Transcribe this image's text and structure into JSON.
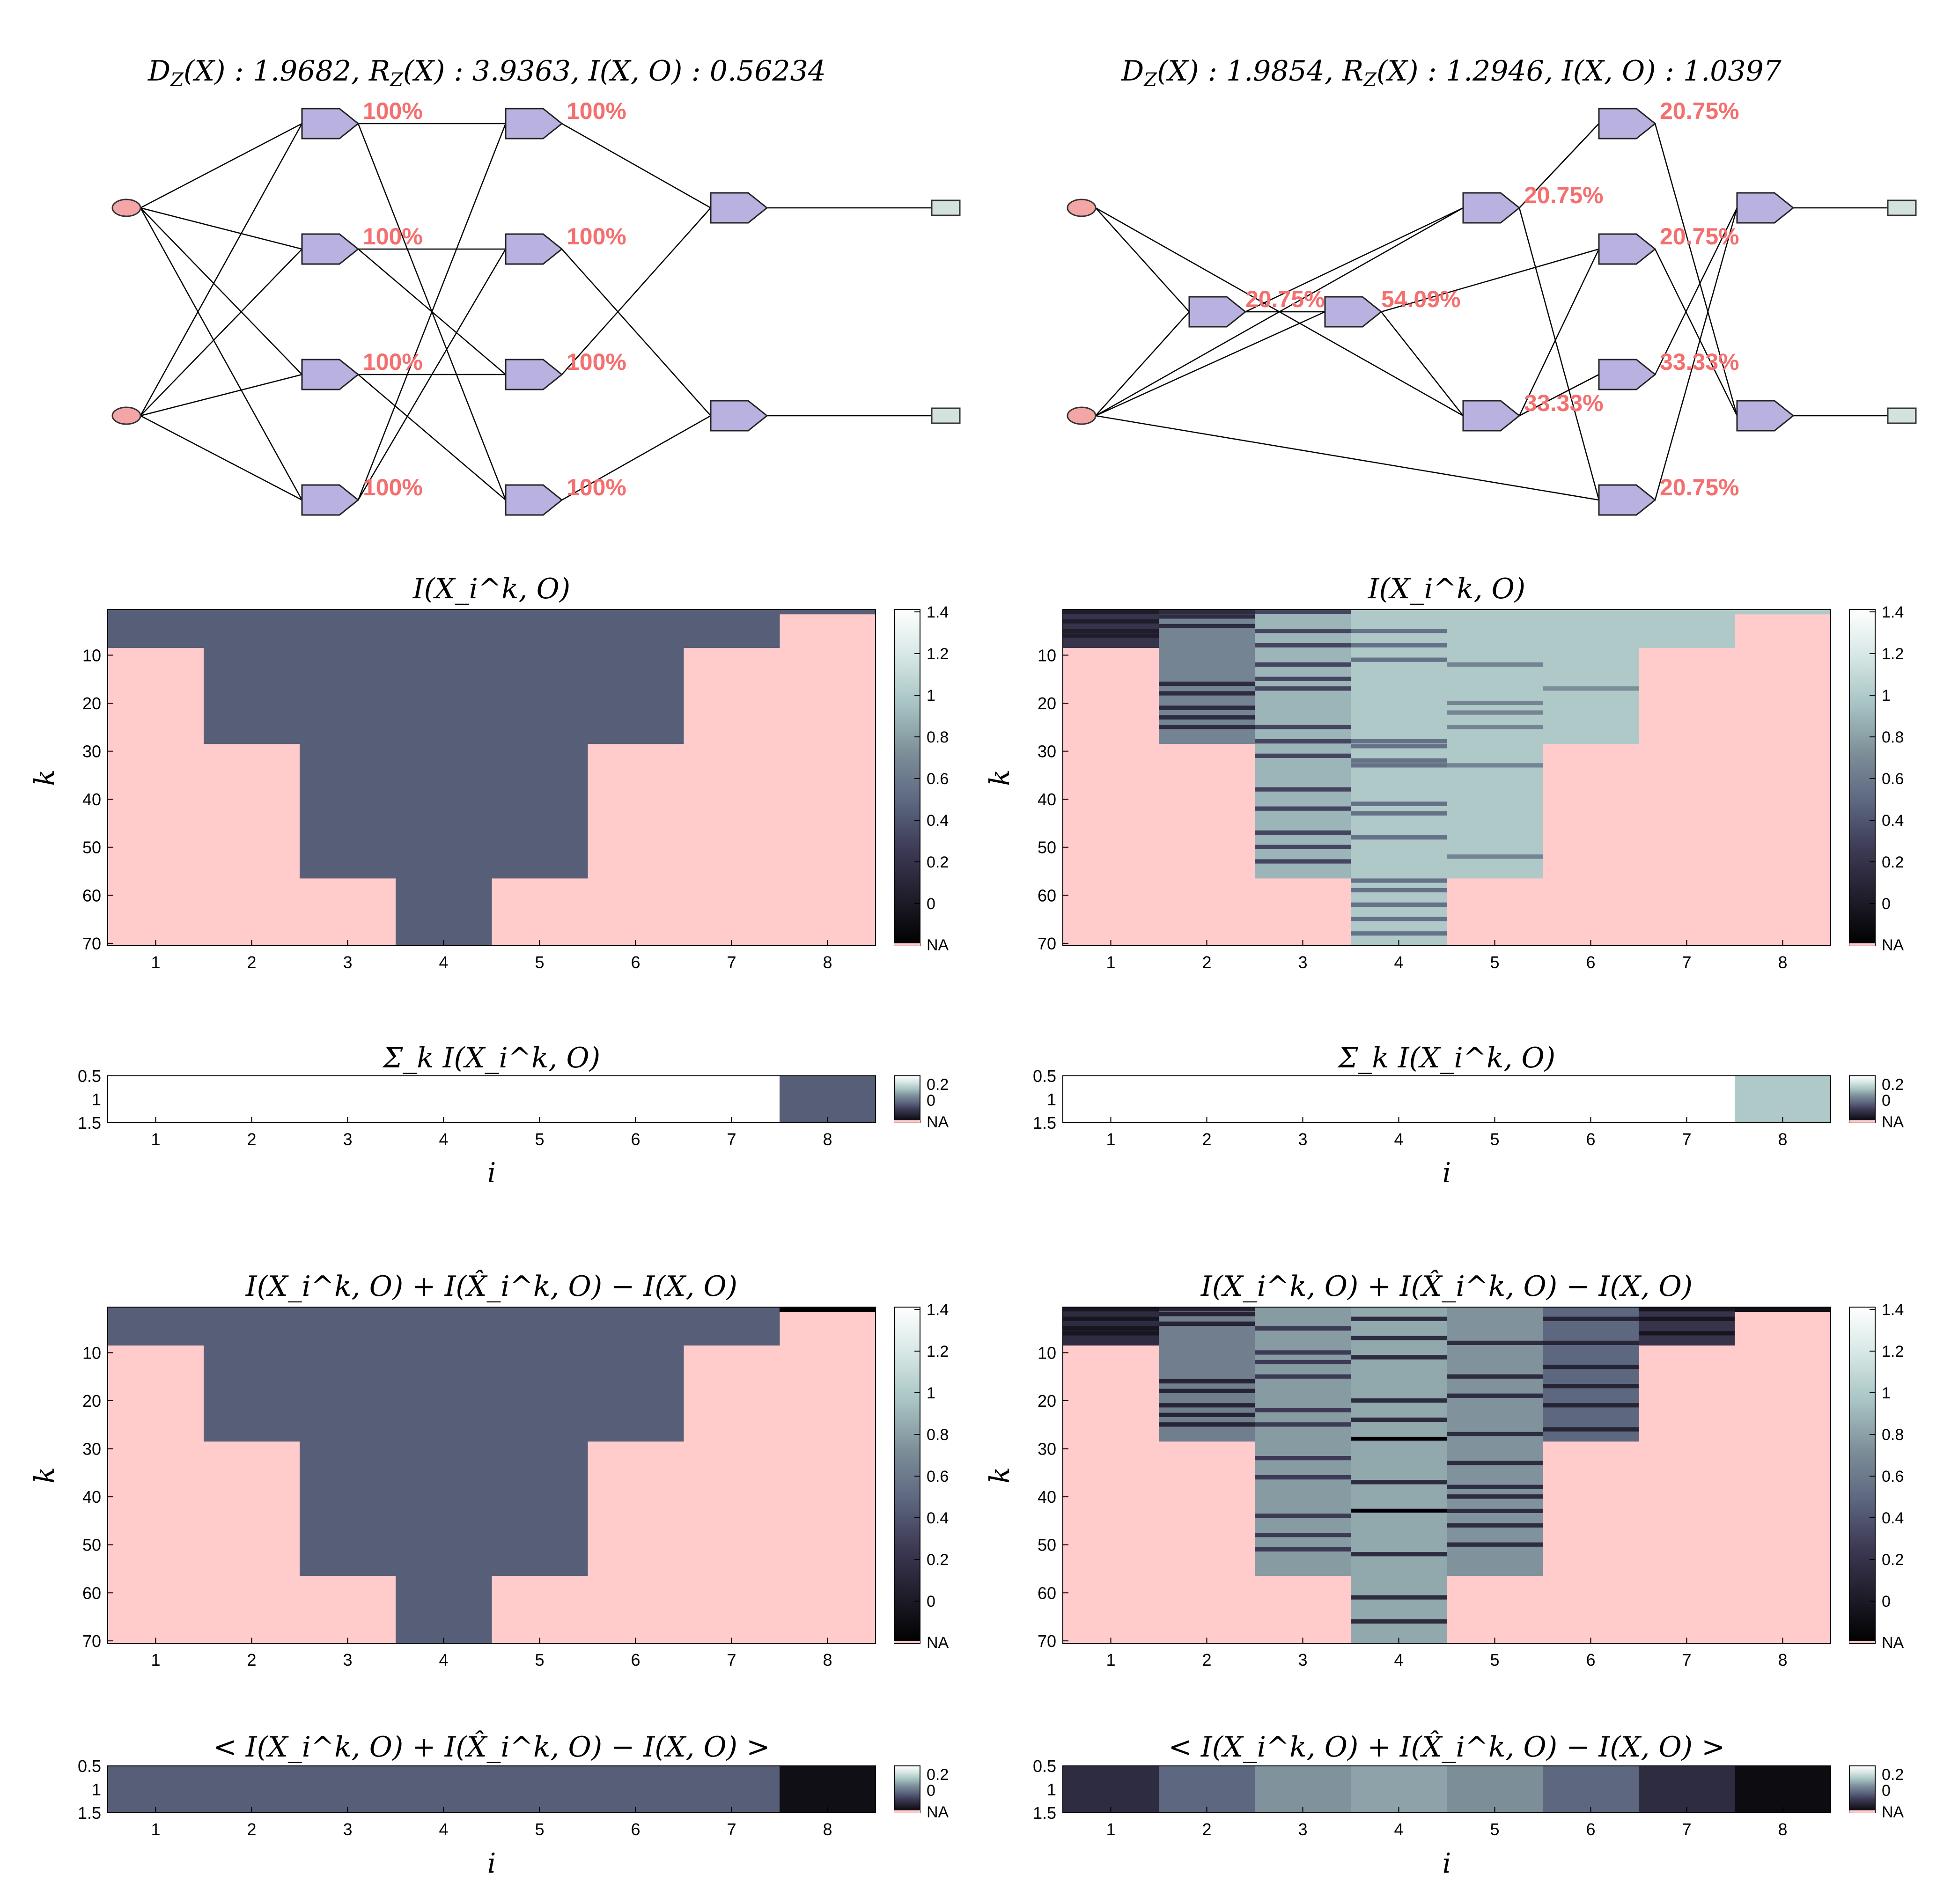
{
  "colors": {
    "na": "#ffcbcb",
    "cmap_stops": [
      "#000000",
      "#1f1d2b",
      "#3d3a55",
      "#5d6780",
      "#7c8e98",
      "#a6c2c2",
      "#d4e6e4",
      "#ffffff"
    ],
    "node_input": "#f4a6a6",
    "node_hidden": "#b9b1e0",
    "node_output": "#d4e2de",
    "percent": "#f46f6f"
  },
  "colorbar": {
    "ticks": [
      "0",
      "0.2",
      "0.4",
      "0.6",
      "0.8",
      "1",
      "1.2",
      "1.4"
    ],
    "small_ticks": [
      "0.2",
      "0",
      "NA"
    ],
    "na_label": "NA"
  },
  "networks": [
    {
      "title": "D_Z(X) : 1.9682, R_Z(X) : 3.9363, I(X,O) : 0.56234",
      "title_parts": [
        "D",
        "Z",
        "(X) : 1.9682, R",
        "Z",
        "(X) : 3.9363, I(X, O) : 0.56234"
      ],
      "node_labels": {
        "h1a": "100%",
        "h1b": "100%",
        "h1c": "100%",
        "h1d": "100%",
        "h2a": "100%",
        "h2b": "100%",
        "h2c": "100%",
        "h2d": "100%"
      }
    },
    {
      "title": "D_Z(X) : 1.9854, R_Z(X) : 1.2946, I(X,O) : 1.0397",
      "title_parts": [
        "D",
        "Z",
        "(X) : 1.9854, R",
        "Z",
        "(X) : 1.2946, I(X, O) : 1.0397"
      ],
      "node_labels": {
        "m1": "20.75%",
        "m2": "54.09%",
        "n1": "20.75%",
        "n2": "33.33%",
        "p1": "20.75%",
        "p2": "20.75%",
        "p3": "33.33%",
        "p4": "20.75%"
      }
    }
  ],
  "charts": {
    "heat_title_1": "I(X_i^k, O)",
    "sum_title": "Σ_k I(X_i^k, O)",
    "heat_title_2": "I(X_i^k, O) + I(X̂_i^k, O) − I(X, O)",
    "avg_title": "< I(X_i^k, O) + I(X̂_i^k, O) − I(X, O) >",
    "xlabel": "i",
    "ylabel": "k",
    "x_ticks": [
      "1",
      "2",
      "3",
      "4",
      "5",
      "6",
      "7",
      "8"
    ],
    "y_ticks": [
      "10",
      "20",
      "30",
      "40",
      "50",
      "60",
      "70"
    ],
    "strip_y_ticks": [
      "0.5",
      "1",
      "1.5"
    ]
  },
  "chart_data": [
    {
      "type": "heatmap",
      "panel": "left-1",
      "title": "I(X_i^k, O)",
      "xlabel": "",
      "ylabel": "k",
      "x": [
        1,
        2,
        3,
        4,
        5,
        6,
        7,
        8
      ],
      "k_range": [
        1,
        70
      ],
      "column_k_max": [
        8,
        28,
        56,
        70,
        56,
        28,
        8,
        1
      ],
      "column_values": [
        0.56,
        0.56,
        0.56,
        0.56,
        0.56,
        0.56,
        0.56,
        0.56
      ],
      "na_color_note": "cells beyond k max are NA",
      "clim": [
        0,
        1.4
      ]
    },
    {
      "type": "heatmap",
      "panel": "left-2",
      "title": "Σ_k I(X_i^k, O)",
      "xlabel": "i",
      "x": [
        1,
        2,
        3,
        4,
        5,
        6,
        7,
        8
      ],
      "values": [
        null,
        null,
        null,
        null,
        null,
        null,
        null,
        0.56
      ],
      "display": [
        "white",
        "white",
        "white",
        "white",
        "white",
        "white",
        "white",
        "value"
      ]
    },
    {
      "type": "heatmap",
      "panel": "left-3",
      "title": "I(X_i^k, O) + I(X̂_i^k, O) − I(X, O)",
      "ylabel": "k",
      "x": [
        1,
        2,
        3,
        4,
        5,
        6,
        7,
        8
      ],
      "k_range": [
        1,
        70
      ],
      "column_k_max": [
        8,
        28,
        56,
        70,
        56,
        28,
        8,
        1
      ],
      "column_values": [
        0.56,
        0.56,
        0.56,
        0.56,
        0.56,
        0.56,
        0.56,
        0.0
      ],
      "clim": [
        0,
        1.4
      ]
    },
    {
      "type": "heatmap",
      "panel": "left-4",
      "title": "< I(X_i^k, O) + I(X̂_i^k, O) − I(X, O) >",
      "xlabel": "i",
      "x": [
        1,
        2,
        3,
        4,
        5,
        6,
        7,
        8
      ],
      "values": [
        0.56,
        0.56,
        0.56,
        0.56,
        0.56,
        0.56,
        0.56,
        0.1
      ]
    },
    {
      "type": "heatmap",
      "panel": "right-1",
      "title": "I(X_i^k, O)",
      "ylabel": "k",
      "x": [
        1,
        2,
        3,
        4,
        5,
        6,
        7,
        8
      ],
      "k_range": [
        1,
        70
      ],
      "column_k_max": [
        8,
        28,
        56,
        70,
        56,
        28,
        8,
        1
      ],
      "column_values": [
        0.35,
        0.75,
        0.95,
        1.04,
        1.04,
        1.04,
        1.04,
        1.04
      ],
      "stripes": [
        {
          "col": 1,
          "k": [
            1,
            3,
            5,
            6
          ],
          "value": 0.2
        },
        {
          "col": 2,
          "k": [
            1,
            2,
            4,
            16,
            18,
            21,
            23,
            25
          ],
          "value": 0.3
        },
        {
          "col": 3,
          "k": [
            1,
            5,
            8,
            12,
            15,
            17,
            25,
            28,
            31,
            38,
            42,
            47,
            50,
            53
          ],
          "value": 0.45
        },
        {
          "col": 4,
          "k": [
            5,
            8,
            11,
            28,
            29,
            32,
            33,
            41,
            43,
            48,
            57,
            59,
            62,
            65,
            68
          ],
          "value": 0.65
        },
        {
          "col": 5,
          "k": [
            12,
            20,
            22,
            25,
            33,
            52
          ],
          "value": 0.75
        },
        {
          "col": 6,
          "k": [
            17
          ],
          "value": 0.8
        }
      ],
      "clim": [
        0,
        1.4
      ]
    },
    {
      "type": "heatmap",
      "panel": "right-2",
      "title": "Σ_k I(X_i^k, O)",
      "xlabel": "i",
      "x": [
        1,
        2,
        3,
        4,
        5,
        6,
        7,
        8
      ],
      "values": [
        null,
        null,
        null,
        null,
        null,
        null,
        null,
        1.04
      ]
    },
    {
      "type": "heatmap",
      "panel": "right-3",
      "title": "I(X_i^k, O) + I(X̂_i^k, O) − I(X, O)",
      "ylabel": "k",
      "x": [
        1,
        2,
        3,
        4,
        5,
        6,
        7,
        8
      ],
      "k_range": [
        1,
        70
      ],
      "column_k_max": [
        8,
        28,
        56,
        70,
        56,
        28,
        8,
        1
      ],
      "column_values": [
        0.3,
        0.72,
        0.85,
        0.9,
        0.82,
        0.6,
        0.35,
        0.1
      ],
      "stripes": [
        {
          "col": 1,
          "k": [
            1,
            3,
            5,
            6
          ],
          "value": 0.15
        },
        {
          "col": 2,
          "k": [
            1,
            2,
            4,
            16,
            18,
            21,
            23,
            25
          ],
          "value": 0.25
        },
        {
          "col": 3,
          "k": [
            5,
            10,
            12,
            15,
            22,
            25,
            32,
            36,
            44,
            48,
            51
          ],
          "value": 0.4
        },
        {
          "col": 4,
          "k": [
            3,
            7,
            11,
            20,
            24,
            28,
            37,
            43,
            52,
            61,
            66
          ],
          "value": 0.3
        },
        {
          "col": 5,
          "k": [
            8,
            15,
            19,
            27,
            33,
            38,
            40,
            43,
            46,
            50
          ],
          "value": 0.3
        },
        {
          "col": 6,
          "k": [
            3,
            8,
            13,
            17,
            21,
            26
          ],
          "value": 0.25
        },
        {
          "col": 7,
          "k": [
            1,
            3,
            6
          ],
          "value": 0.15
        }
      ],
      "deep_stripes": [
        {
          "col": 4,
          "k": [
            28,
            43
          ],
          "value": 0.0
        }
      ],
      "clim": [
        0,
        1.4
      ]
    },
    {
      "type": "heatmap",
      "panel": "right-4",
      "title": "< I(X_i^k, O) + I(X̂_i^k, O) − I(X, O) >",
      "xlabel": "i",
      "x": [
        1,
        2,
        3,
        4,
        5,
        6,
        7,
        8
      ],
      "values": [
        0.3,
        0.6,
        0.82,
        0.88,
        0.8,
        0.6,
        0.3,
        0.08
      ]
    }
  ]
}
